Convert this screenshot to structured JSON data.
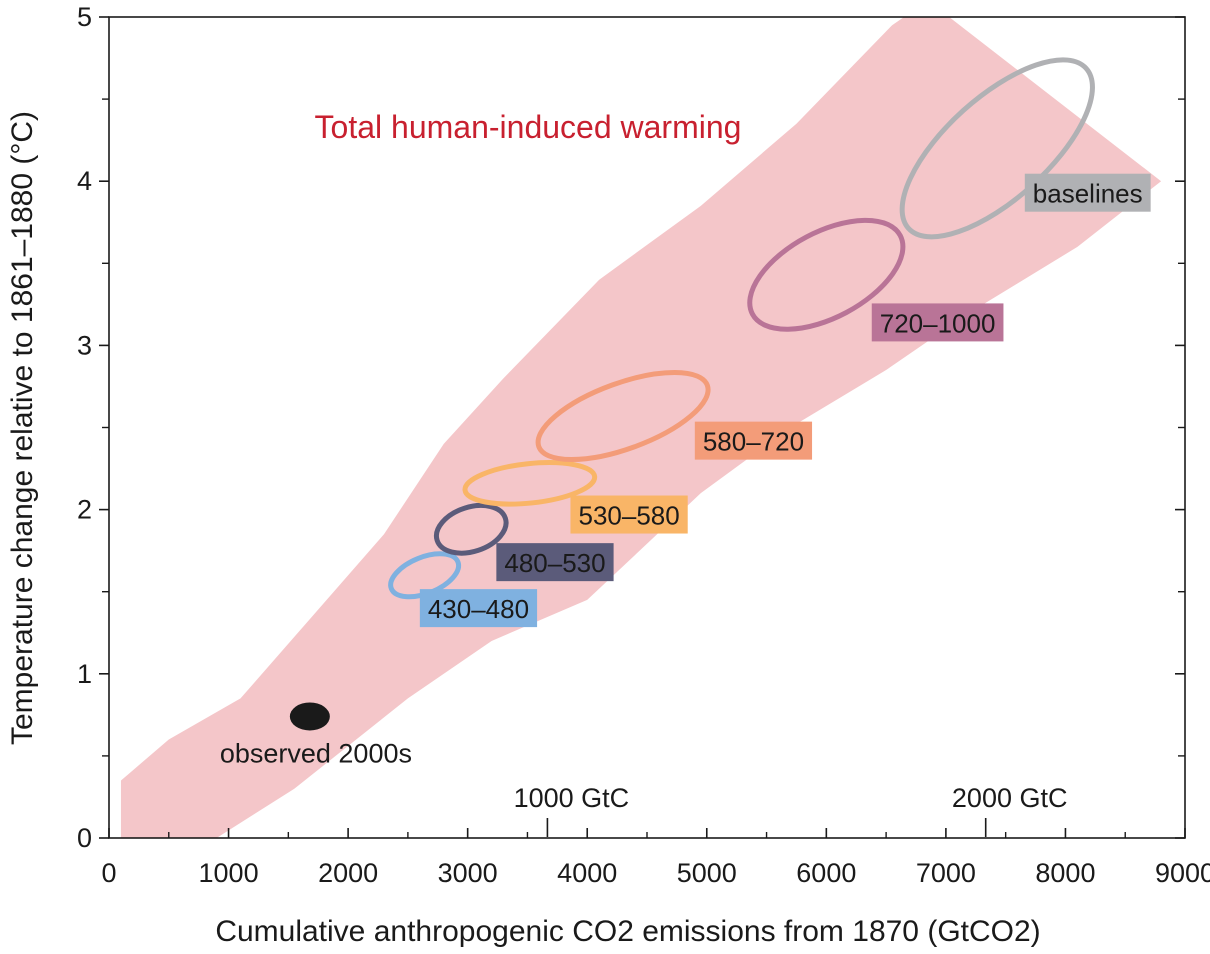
{
  "chart_data": {
    "type": "scatter",
    "title": "Total human-induced warming",
    "xlabel": "Cumulative anthropogenic CO2 emissions from 1870  (GtCO2)",
    "ylabel": "Temperature change relative to 1861–1880 (°C)",
    "xlim": [
      0,
      9000
    ],
    "ylim": [
      0,
      5
    ],
    "x_ticks": [
      0,
      1000,
      2000,
      3000,
      4000,
      5000,
      6000,
      7000,
      8000,
      9000
    ],
    "y_ticks": [
      0,
      1,
      2,
      3,
      4,
      5
    ],
    "secondary_x_axis": [
      {
        "label": "1000 GtC",
        "x": 3667
      },
      {
        "label": "2000 GtC",
        "x": 7333
      }
    ],
    "grid": false,
    "band": {
      "name": "Total human-induced warming",
      "color": "#f4c6c9",
      "upper": [
        [
          100,
          0.35
        ],
        [
          500,
          0.6
        ],
        [
          1100,
          0.85
        ],
        [
          1700,
          1.35
        ],
        [
          2300,
          1.85
        ],
        [
          2800,
          2.4
        ],
        [
          3300,
          2.8
        ],
        [
          4100,
          3.4
        ],
        [
          4950,
          3.85
        ],
        [
          5750,
          4.35
        ],
        [
          6550,
          4.95
        ],
        [
          6850,
          5.1
        ]
      ],
      "lower": [
        [
          100,
          0
        ],
        [
          900,
          0
        ],
        [
          1550,
          0.3
        ],
        [
          2500,
          0.85
        ],
        [
          3200,
          1.2
        ],
        [
          4000,
          1.45
        ],
        [
          4950,
          2.1
        ],
        [
          5700,
          2.5
        ],
        [
          6500,
          2.85
        ],
        [
          7200,
          3.2
        ],
        [
          8100,
          3.6
        ],
        [
          8800,
          4.0
        ]
      ]
    },
    "observed": {
      "label": "observed 2000s",
      "x": 1680,
      "y": 0.74,
      "color": "#1a1a1a"
    },
    "series": [
      {
        "name": "430–480",
        "color": "#7fb1e0",
        "cx": 2640,
        "cy": 1.6,
        "rx": 300,
        "ry": 0.11,
        "rot": 22
      },
      {
        "name": "480–530",
        "color": "#5b5b7a",
        "cx": 3030,
        "cy": 1.88,
        "rx": 300,
        "ry": 0.135,
        "rot": 18
      },
      {
        "name": "530–580",
        "color": "#f9b567",
        "cx": 3520,
        "cy": 2.16,
        "rx": 545,
        "ry": 0.12,
        "rot": 6
      },
      {
        "name": "580–720",
        "color": "#f39c79",
        "cx": 4300,
        "cy": 2.57,
        "rx": 750,
        "ry": 0.2,
        "rot": 20
      },
      {
        "name": "720–1000",
        "color": "#b97497",
        "cx": 6000,
        "cy": 3.43,
        "rx": 700,
        "ry": 0.26,
        "rot": 28
      },
      {
        "name": "baselines",
        "color": "#b0b1b4",
        "cx": 7430,
        "cy": 4.2,
        "rx": 1000,
        "ry": 0.31,
        "rot": 42
      }
    ]
  },
  "series_labels": {
    "s430": "430–480",
    "s480": "480–530",
    "s530": "530–580",
    "s580": "580–720",
    "s720": "720–1000",
    "baselines": "baselines"
  },
  "tags": {
    "s430": {
      "x": 2600,
      "y": 1.4,
      "color": "#7fb1e0"
    },
    "s480": {
      "x": 3240,
      "y": 1.68,
      "color": "#5b5b7a"
    },
    "s530": {
      "x": 3860,
      "y": 1.97,
      "color": "#f9b567"
    },
    "s580": {
      "x": 4900,
      "y": 2.42,
      "color": "#f39c79"
    },
    "s720": {
      "x": 6380,
      "y": 3.14,
      "color": "#b97497"
    },
    "baselines": {
      "x": 7660,
      "y": 3.93,
      "color": "#b0b1b4"
    }
  }
}
